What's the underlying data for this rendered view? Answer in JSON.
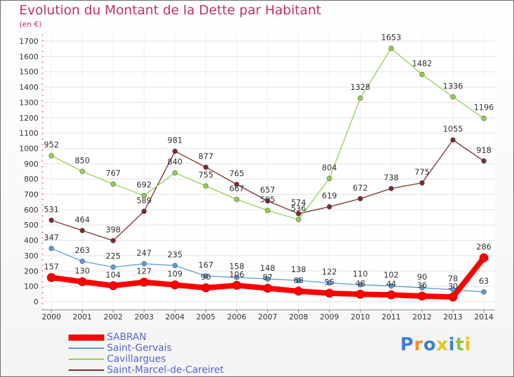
{
  "chart_data": {
    "type": "line",
    "title": "Evolution du Montant de la Dette par Habitant",
    "subtitle": "(en €)",
    "x": [
      "2000",
      "2001",
      "2002",
      "2003",
      "2004",
      "2005",
      "2006",
      "2007",
      "2008",
      "2009",
      "2010",
      "2011",
      "2012",
      "2013",
      "2014"
    ],
    "ylim": [
      0,
      1700
    ],
    "yticks": [
      0,
      100,
      200,
      300,
      400,
      500,
      600,
      700,
      800,
      900,
      1000,
      1100,
      1200,
      1300,
      1400,
      1500,
      1600,
      1700
    ],
    "grid": true,
    "legend_position": "bottom-left",
    "series": [
      {
        "name": "SABRAN",
        "color": "#ff0000",
        "values": [
          157,
          130,
          104,
          127,
          109,
          90,
          106,
          87,
          68,
          55,
          48,
          44,
          36,
          30,
          286
        ],
        "labels": [
          "157",
          "130",
          "104",
          "127",
          "109",
          "90",
          "106",
          "87",
          "68",
          "55",
          "48",
          "44",
          "36",
          "30",
          "286"
        ]
      },
      {
        "name": "Saint-Gervais",
        "color": "#5b9bd5",
        "values": [
          347,
          263,
          225,
          247,
          235,
          167,
          158,
          148,
          138,
          122,
          110,
          102,
          90,
          78,
          63
        ],
        "labels": [
          "347",
          "263",
          "225",
          "247",
          "235",
          "167",
          "158",
          "148",
          "138",
          "122",
          "110",
          "102",
          "90",
          "78",
          "63"
        ]
      },
      {
        "name": "Cavillargues",
        "color": "#92d050",
        "values": [
          952,
          850,
          767,
          692,
          840,
          755,
          667,
          595,
          536,
          804,
          1328,
          1653,
          1482,
          1336,
          1196
        ],
        "labels": [
          "952",
          "850",
          "767",
          "692",
          "840",
          "755",
          "667",
          "595",
          "536",
          "804",
          "1328",
          "1653",
          "1482",
          "1336",
          "1196"
        ]
      },
      {
        "name": "Saint-Marcel-de-Careiret",
        "color": "#7b2b2b",
        "values": [
          531,
          464,
          398,
          589,
          981,
          877,
          765,
          657,
          574,
          619,
          672,
          738,
          775,
          1055,
          918
        ],
        "labels": [
          "531",
          "464",
          "398",
          "589",
          "981",
          "877",
          "765",
          "657",
          "574",
          "619",
          "672",
          "738",
          "775",
          "1055",
          "918"
        ]
      }
    ]
  },
  "logo": {
    "text": "Proxiti"
  }
}
